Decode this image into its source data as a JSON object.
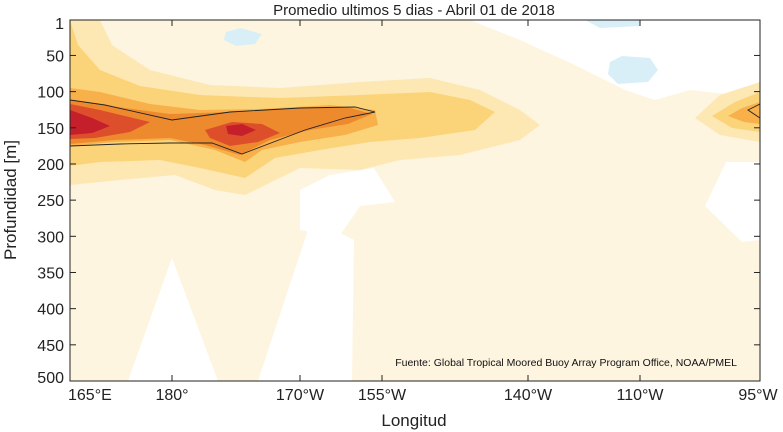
{
  "chart_data": {
    "type": "heatmap",
    "subtype": "filled-contour",
    "title": "Promedio ultimos 5 dias - Abril 01 de 2018",
    "xlabel": "Longitud",
    "ylabel": "Profundidad [m]",
    "source": "Fuente: Global Tropical Moored Buoy Array Program Office, NOAA/PMEL",
    "x_ticks": [
      "165°E",
      "180°",
      "170°W",
      "155°W",
      "140°W",
      "110°W",
      "95°W"
    ],
    "y_ticks": [
      "1",
      "50",
      "100",
      "150",
      "200",
      "250",
      "300",
      "350",
      "400",
      "450",
      "500"
    ],
    "y_range": [
      1,
      500
    ],
    "y_reversed": true,
    "colors": {
      "negative": "#d9eff7",
      "level1": "#fdf5df",
      "level2": "#fde8b4",
      "level3": "#fbd47a",
      "level4": "#f7b04a",
      "level5": "#ee8a2e",
      "level6": "#dd4f2a",
      "level7": "#c41f2a"
    },
    "features": [
      {
        "name": "core maximum",
        "x": "165°E",
        "depth": 130,
        "level": "level7"
      },
      {
        "name": "secondary maximum",
        "x": "170°W",
        "depth": 150,
        "level": "level6"
      },
      {
        "name": "eastern maximum",
        "x": "95°W",
        "depth": 115,
        "level": "level4"
      },
      {
        "name": "negative region",
        "x": "175°W",
        "depth": 15
      },
      {
        "name": "negative region",
        "x": "110°W",
        "depth": 70
      }
    ]
  }
}
